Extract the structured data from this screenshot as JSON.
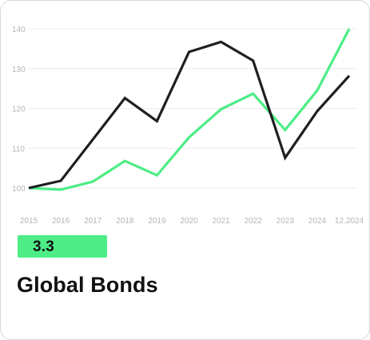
{
  "chart_data": {
    "type": "line",
    "x": [
      "2015",
      "2016",
      "2017",
      "2018",
      "2019",
      "2020",
      "2021",
      "2022",
      "2023",
      "2024",
      "12.2024"
    ],
    "series": [
      {
        "color": "#1f1f1f",
        "values": [
          100,
          101.8,
          112.2,
          122.6,
          116.8,
          134.2,
          136.7,
          132.0,
          107.6,
          119.3,
          128.2
        ]
      },
      {
        "color": "#4ded85",
        "values": [
          100,
          99.6,
          101.6,
          106.8,
          103.2,
          112.7,
          119.8,
          123.7,
          114.6,
          124.5,
          140.0
        ]
      }
    ],
    "yticks": [
      100,
      110,
      120,
      130,
      140
    ],
    "ylim": [
      100,
      140
    ],
    "grid": true
  },
  "badge": {
    "value": "3.3",
    "color": "#4ded85"
  },
  "title": "Global Bonds"
}
